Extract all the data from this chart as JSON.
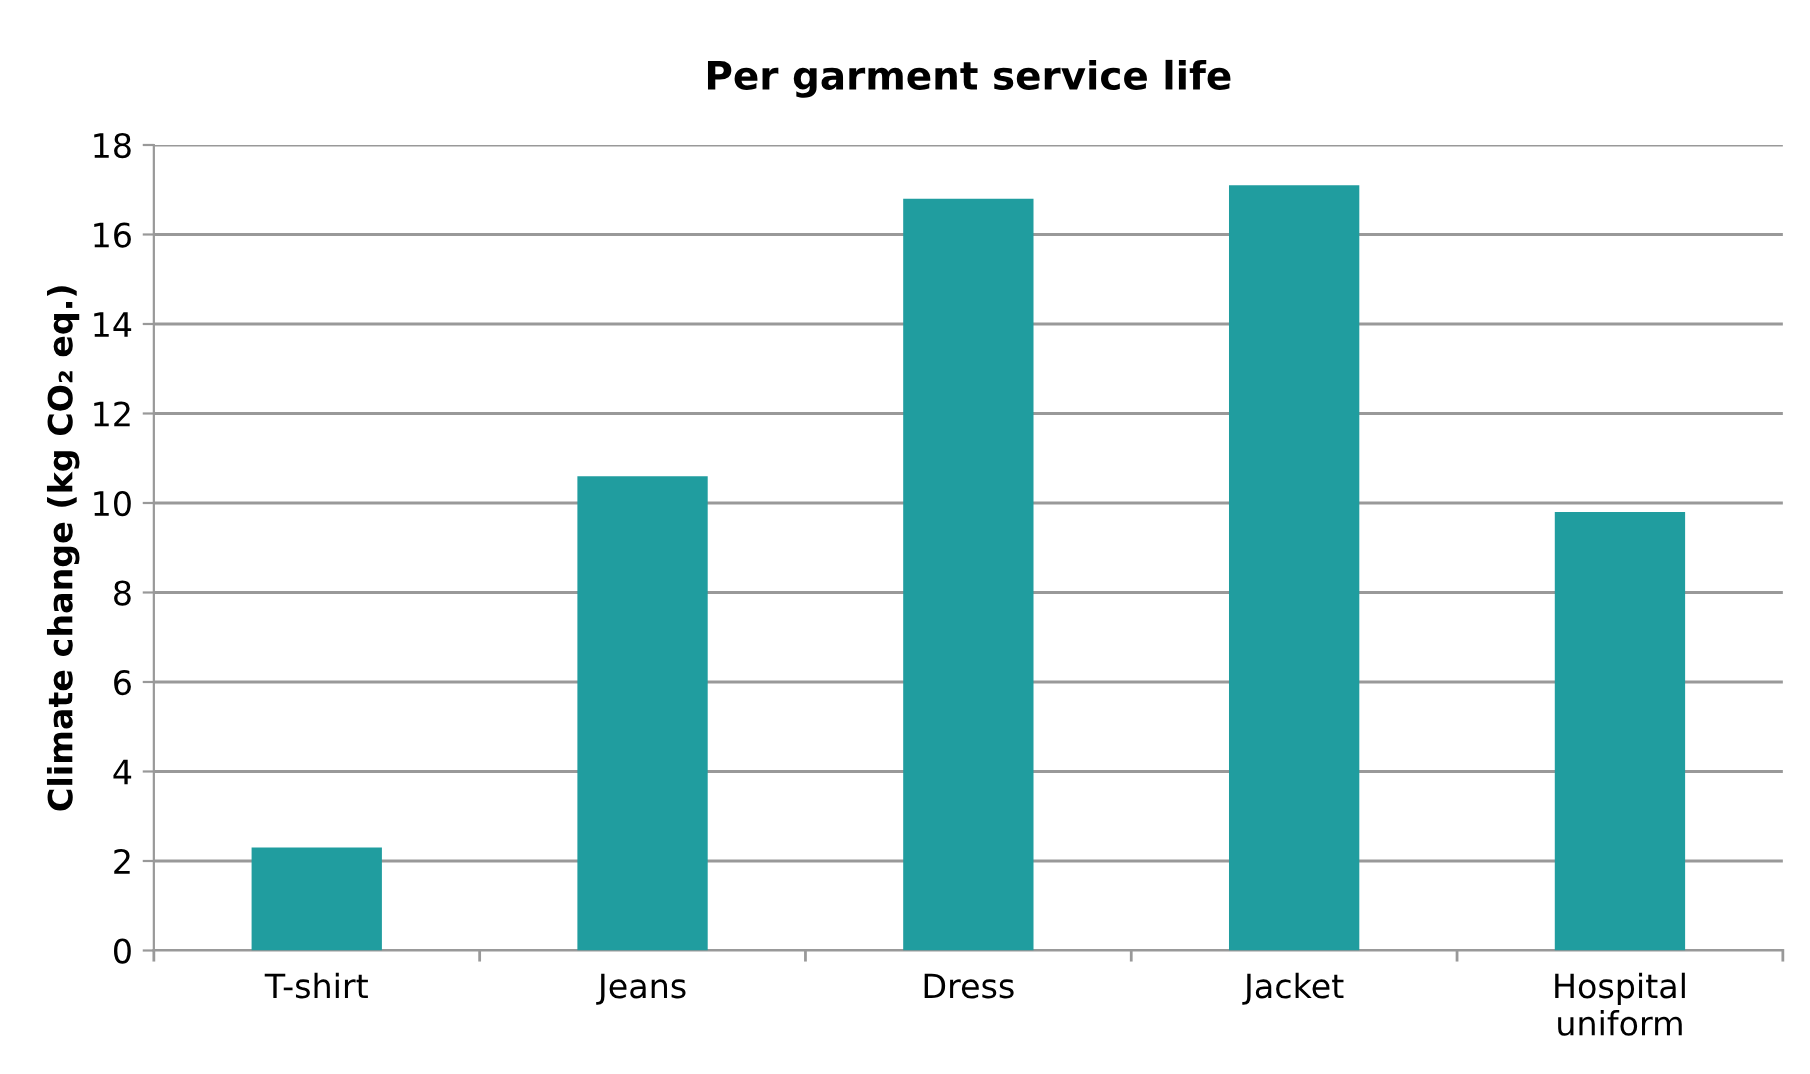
{
  "chart_data": {
    "type": "bar",
    "title": "Per garment service life",
    "ylabel": "Climate change (kg CO₂ eq.)",
    "categories": [
      "T-shirt",
      "Jeans",
      "Dress",
      "Jacket",
      "Hospital\nuniform"
    ],
    "values": [
      2.3,
      10.6,
      16.8,
      17.1,
      9.8
    ],
    "color": "#209d9f",
    "ylim": [
      0,
      18
    ],
    "yticks": [
      0,
      2,
      4,
      6,
      8,
      10,
      12,
      14,
      16,
      18
    ],
    "grid": "y",
    "legend": false
  }
}
